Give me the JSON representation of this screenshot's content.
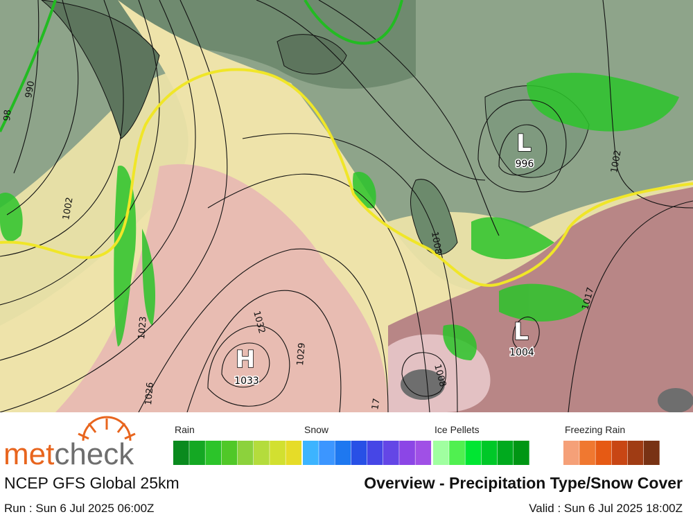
{
  "logo": {
    "part1": "met",
    "part2": "check"
  },
  "pressure_centers": [
    {
      "letter": "H",
      "value": "1033"
    },
    {
      "letter": "L",
      "value": "996"
    },
    {
      "letter": "L",
      "value": "1004"
    }
  ],
  "isobar_labels": [
    "990",
    "1002",
    "1023",
    "1026",
    "1029",
    "1032",
    "1008",
    "1008",
    "1002",
    "1017",
    "17",
    "98"
  ],
  "legend": [
    {
      "label": "Rain",
      "colors": [
        "#0a8a1e",
        "#14a823",
        "#2cc42a",
        "#50c828",
        "#8cd23c",
        "#b4dc3c",
        "#d2e030",
        "#e6dc28"
      ]
    },
    {
      "label": "Snow",
      "colors": [
        "#3cb4ff",
        "#3c96ff",
        "#1e78f0",
        "#2850e6",
        "#4646e6",
        "#6446e6",
        "#8c46e6",
        "#a050e6"
      ]
    },
    {
      "label": "Ice Pellets",
      "colors": [
        "#a0ffa0",
        "#50f050",
        "#00e632",
        "#00c828",
        "#00aa1e",
        "#009614"
      ]
    },
    {
      "label": "Freezing Rain",
      "colors": [
        "#f5a078",
        "#f07830",
        "#e65a14",
        "#c84614",
        "#a03c14",
        "#783214"
      ]
    }
  ],
  "footer": {
    "model": "NCEP GFS Global 25km",
    "title": "Overview - Precipitation Type/Snow Cover",
    "run": "Run : Sun 6 Jul 2025 06:00Z",
    "valid": "Valid : Sun 6 Jul 2025 18:00Z"
  }
}
